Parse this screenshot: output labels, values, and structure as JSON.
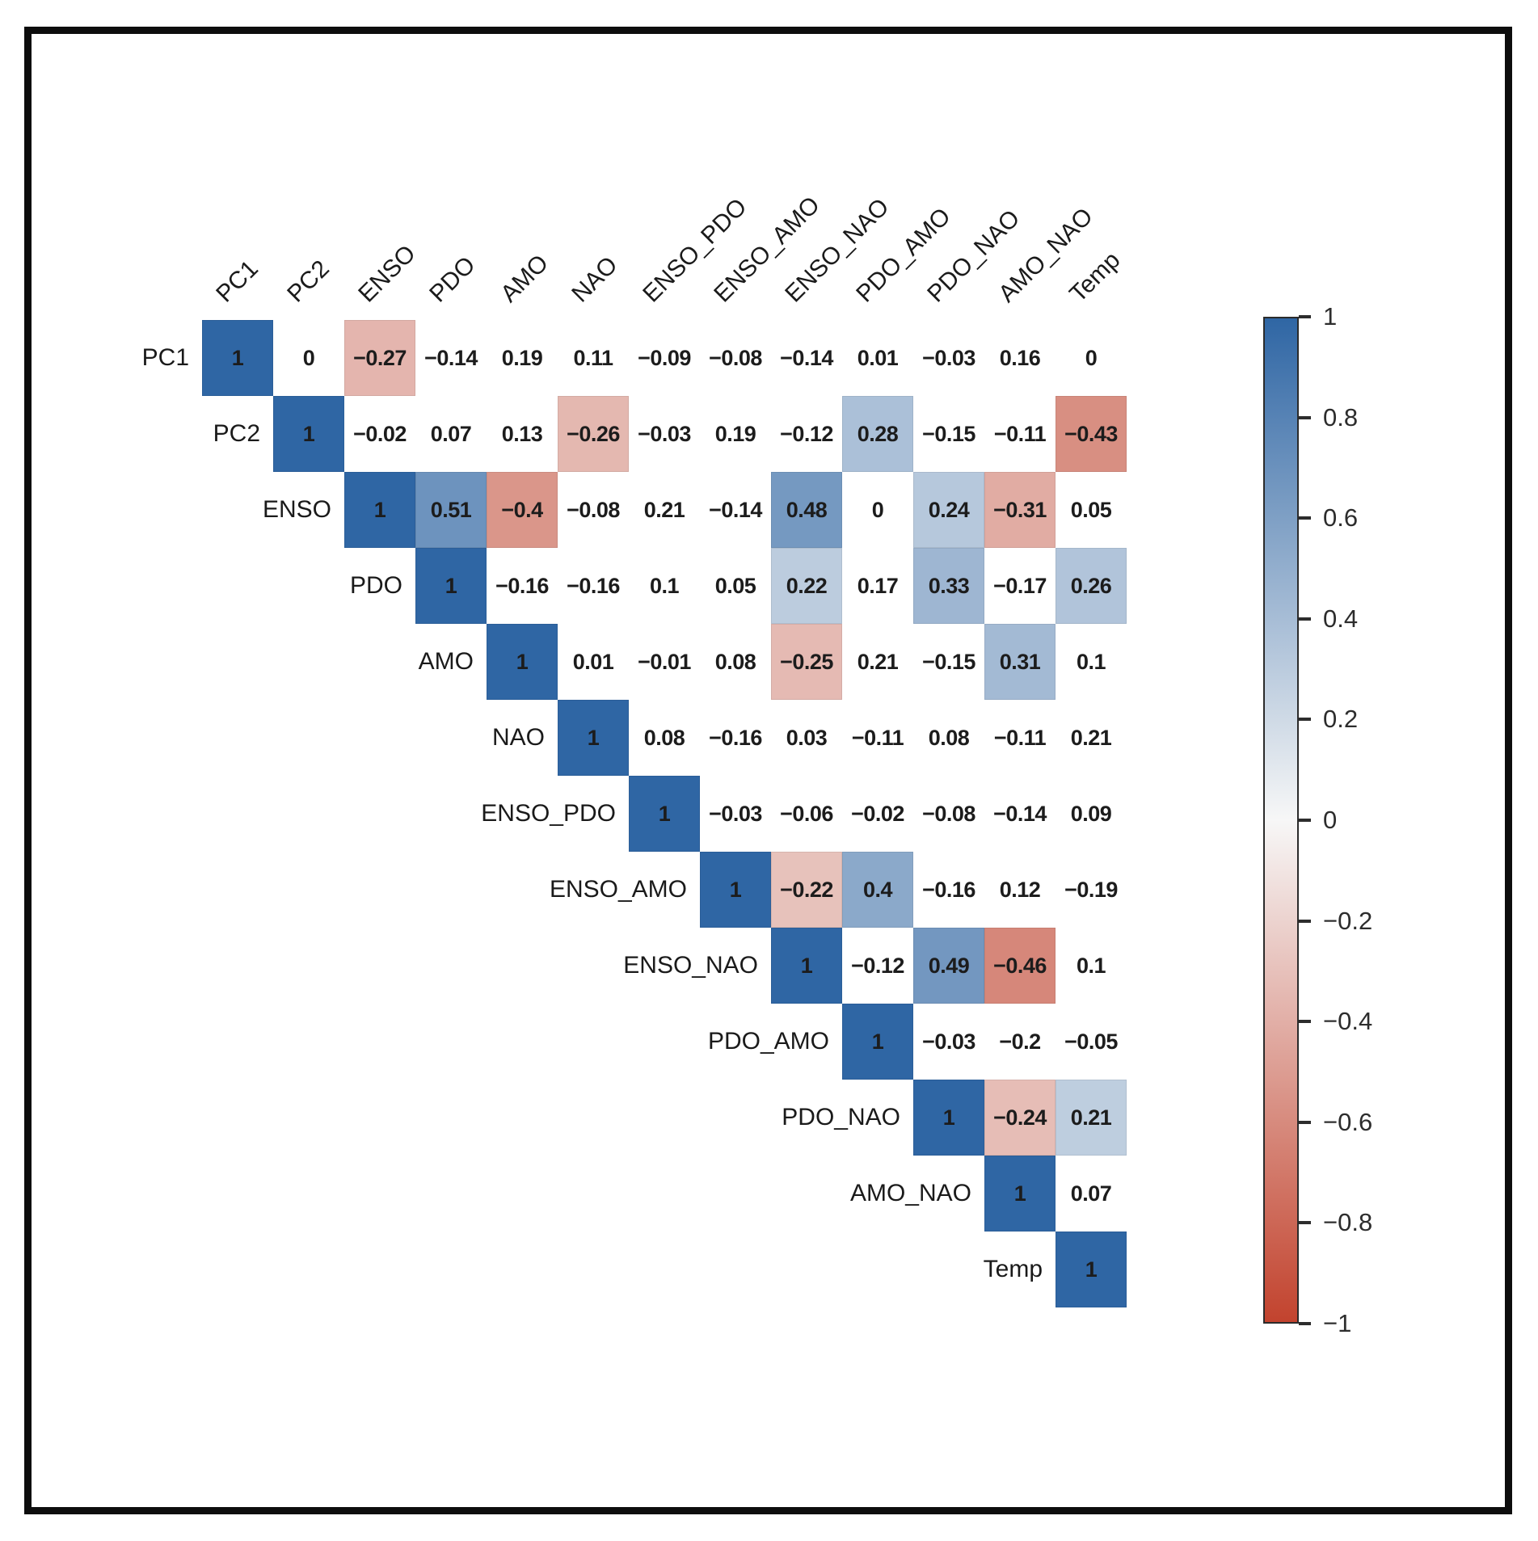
{
  "figure": {
    "background": "#ffffff",
    "frame_color": "#0d0d0d"
  },
  "chart_data": {
    "type": "heatmap",
    "subtype": "correlation_matrix_upper_triangle",
    "title": "",
    "variables": [
      "PC1",
      "PC2",
      "ENSO",
      "PDO",
      "AMO",
      "NAO",
      "ENSO_PDO",
      "ENSO_AMO",
      "ENSO_NAO",
      "PDO_AMO",
      "PDO_NAO",
      "AMO_NAO",
      "Temp"
    ],
    "rows": [
      {
        "label": "PC1",
        "values": [
          1,
          0,
          -0.27,
          -0.14,
          0.19,
          0.11,
          -0.09,
          -0.08,
          -0.14,
          0.01,
          -0.03,
          0.16,
          0
        ],
        "display": [
          "1",
          "0",
          "−0.27",
          "−0.14",
          "0.19",
          "0.11",
          "−0.09",
          "−0.08",
          "−0.14",
          "0.01",
          "−0.03",
          "0.16",
          "0"
        ],
        "colored": [
          true,
          false,
          true,
          false,
          false,
          false,
          false,
          false,
          false,
          false,
          false,
          false,
          false
        ]
      },
      {
        "label": "PC2",
        "values": [
          1,
          -0.02,
          0.07,
          0.13,
          -0.26,
          -0.03,
          0.19,
          -0.12,
          0.28,
          -0.15,
          -0.11,
          -0.43
        ],
        "display": [
          "1",
          "−0.02",
          "0.07",
          "0.13",
          "−0.26",
          "−0.03",
          "0.19",
          "−0.12",
          "0.28",
          "−0.15",
          "−0.11",
          "−0.43"
        ],
        "colored": [
          true,
          false,
          false,
          false,
          true,
          false,
          false,
          false,
          true,
          false,
          false,
          true
        ]
      },
      {
        "label": "ENSO",
        "values": [
          1,
          0.51,
          -0.4,
          -0.08,
          0.21,
          -0.14,
          0.48,
          0,
          0.24,
          -0.31,
          0.05
        ],
        "display": [
          "1",
          "0.51",
          "−0.4",
          "−0.08",
          "0.21",
          "−0.14",
          "0.48",
          "0",
          "0.24",
          "−0.31",
          "0.05"
        ],
        "colored": [
          true,
          true,
          true,
          false,
          false,
          false,
          true,
          false,
          true,
          true,
          false
        ]
      },
      {
        "label": "PDO",
        "values": [
          1,
          -0.16,
          -0.16,
          0.1,
          0.05,
          0.22,
          0.17,
          0.33,
          -0.17,
          0.26
        ],
        "display": [
          "1",
          "−0.16",
          "−0.16",
          "0.1",
          "0.05",
          "0.22",
          "0.17",
          "0.33",
          "−0.17",
          "0.26"
        ],
        "colored": [
          true,
          false,
          false,
          false,
          false,
          true,
          false,
          true,
          false,
          true
        ]
      },
      {
        "label": "AMO",
        "values": [
          1,
          0.01,
          -0.01,
          0.08,
          -0.25,
          0.21,
          -0.15,
          0.31,
          0.1
        ],
        "display": [
          "1",
          "0.01",
          "−0.01",
          "0.08",
          "−0.25",
          "0.21",
          "−0.15",
          "0.31",
          "0.1"
        ],
        "colored": [
          true,
          false,
          false,
          false,
          true,
          false,
          false,
          true,
          false
        ]
      },
      {
        "label": "NAO",
        "values": [
          1,
          0.08,
          -0.16,
          0.03,
          -0.11,
          0.08,
          -0.11,
          0.21
        ],
        "display": [
          "1",
          "0.08",
          "−0.16",
          "0.03",
          "−0.11",
          "0.08",
          "−0.11",
          "0.21"
        ],
        "colored": [
          true,
          false,
          false,
          false,
          false,
          false,
          false,
          false
        ]
      },
      {
        "label": "ENSO_PDO",
        "values": [
          1,
          -0.03,
          -0.06,
          -0.02,
          -0.08,
          -0.14,
          0.09
        ],
        "display": [
          "1",
          "−0.03",
          "−0.06",
          "−0.02",
          "−0.08",
          "−0.14",
          "0.09"
        ],
        "colored": [
          true,
          false,
          false,
          false,
          false,
          false,
          false
        ]
      },
      {
        "label": "ENSO_AMO",
        "values": [
          1,
          -0.22,
          0.4,
          -0.16,
          0.12,
          -0.19
        ],
        "display": [
          "1",
          "−0.22",
          "0.4",
          "−0.16",
          "0.12",
          "−0.19"
        ],
        "colored": [
          true,
          true,
          true,
          false,
          false,
          false
        ]
      },
      {
        "label": "ENSO_NAO",
        "values": [
          1,
          -0.12,
          0.49,
          -0.46,
          0.1
        ],
        "display": [
          "1",
          "−0.12",
          "0.49",
          "−0.46",
          "0.1"
        ],
        "colored": [
          true,
          false,
          true,
          true,
          false
        ]
      },
      {
        "label": "PDO_AMO",
        "values": [
          1,
          -0.03,
          -0.2,
          -0.05
        ],
        "display": [
          "1",
          "−0.03",
          "−0.2",
          "−0.05"
        ],
        "colored": [
          true,
          false,
          false,
          false
        ]
      },
      {
        "label": "PDO_NAO",
        "values": [
          1,
          -0.24,
          0.21
        ],
        "display": [
          "1",
          "−0.24",
          "0.21"
        ],
        "colored": [
          true,
          true,
          true
        ]
      },
      {
        "label": "AMO_NAO",
        "values": [
          1,
          0.07
        ],
        "display": [
          "1",
          "0.07"
        ],
        "colored": [
          true,
          false
        ]
      },
      {
        "label": "Temp",
        "values": [
          1
        ],
        "display": [
          "1"
        ],
        "colored": [
          true
        ]
      }
    ],
    "colorbar": {
      "position": "right",
      "min": -1,
      "max": 1,
      "tick_values": [
        1,
        0.8,
        0.6,
        0.4,
        0.2,
        0,
        -0.2,
        -0.4,
        -0.6,
        -0.8,
        -1
      ],
      "tick_labels": [
        "1",
        "0.8",
        "0.6",
        "0.4",
        "0.2",
        "0",
        "−0.2",
        "−0.4",
        "−0.6",
        "−0.8",
        "−1"
      ]
    },
    "colors": {
      "positive_max": "#2f66a4",
      "negative_max": "#c2432e",
      "neutral": "#f7f7f7",
      "value_text": "#1c1c1c",
      "label_text": "#1a1a1a",
      "tick_text": "#2d2d2d",
      "tint_boost": 1.35
    },
    "layout_hints": {
      "grid": "off",
      "legend": "colorbar-right",
      "diagonal": "self-correlation = 1"
    }
  }
}
